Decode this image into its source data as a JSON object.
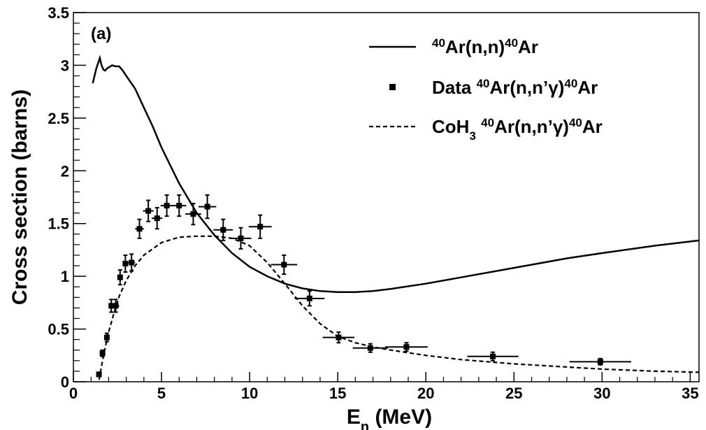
{
  "chart_data": {
    "type": "scatter",
    "panel_label": "(a)",
    "xlabel": {
      "main": "E",
      "sub": "n",
      "tail": " (MeV)"
    },
    "ylabel": "Cross section (barns)",
    "xlim": [
      0,
      35.5
    ],
    "ylim": [
      0,
      3.5
    ],
    "x_ticks": [
      0,
      5,
      10,
      15,
      20,
      25,
      30,
      35
    ],
    "y_ticks": [
      0,
      0.5,
      1,
      1.5,
      2,
      2.5,
      3,
      3.5
    ],
    "x_tick_labels": [
      "0",
      "5",
      "10",
      "15",
      "20",
      "25",
      "30",
      "35"
    ],
    "y_tick_labels": [
      "0",
      "0.5",
      "1",
      "1.5",
      "2",
      "2.5",
      "3",
      "3.5"
    ],
    "legend": {
      "position": "top-right",
      "entries": [
        {
          "key": "elastic",
          "style": "solid-line",
          "parts": [
            [
              "sup",
              "40"
            ],
            [
              "n",
              "Ar(n,n)"
            ],
            [
              "sup",
              "40"
            ],
            [
              "n",
              "Ar"
            ]
          ]
        },
        {
          "key": "data",
          "style": "marker",
          "parts": [
            [
              "n",
              "Data "
            ],
            [
              "sup",
              "40"
            ],
            [
              "n",
              "Ar(n,n’γ)"
            ],
            [
              "sup",
              "40"
            ],
            [
              "n",
              "Ar"
            ]
          ]
        },
        {
          "key": "coh3",
          "style": "dashed-line",
          "parts": [
            [
              "n",
              "CoH"
            ],
            [
              "sub",
              "3"
            ],
            [
              "n",
              " "
            ],
            [
              "sup",
              "40"
            ],
            [
              "n",
              "Ar(n,n’γ)"
            ],
            [
              "sup",
              "40"
            ],
            [
              "n",
              "Ar"
            ]
          ]
        }
      ]
    },
    "series": [
      {
        "name": "40Ar(n,n)40Ar",
        "style": "solid",
        "x": [
          1.1,
          1.3,
          1.5,
          1.6,
          1.7,
          1.8,
          1.9,
          2.0,
          2.2,
          2.4,
          2.6,
          2.8,
          3.0,
          3.5,
          4.0,
          4.5,
          5.0,
          6.0,
          7.0,
          8.0,
          9.0,
          10.0,
          11.0,
          12.0,
          13.0,
          14.0,
          15.0,
          16.0,
          17.0,
          18.0,
          20.0,
          22.0,
          25.0,
          28.0,
          30.0,
          33.0,
          35.5
        ],
        "y": [
          2.83,
          2.97,
          3.07,
          3.0,
          2.96,
          2.95,
          2.97,
          2.98,
          3.0,
          2.99,
          2.99,
          2.95,
          2.9,
          2.78,
          2.6,
          2.42,
          2.22,
          1.88,
          1.6,
          1.39,
          1.22,
          1.09,
          1.0,
          0.93,
          0.885,
          0.86,
          0.85,
          0.85,
          0.86,
          0.88,
          0.93,
          0.99,
          1.08,
          1.17,
          1.22,
          1.29,
          1.34
        ]
      },
      {
        "name": "CoH3 40Ar(n,n'γ)40Ar",
        "style": "dashed",
        "x": [
          1.46,
          1.6,
          1.8,
          2.0,
          2.3,
          2.6,
          3.0,
          3.5,
          4.0,
          5.0,
          6.0,
          7.0,
          8.0,
          9.0,
          10.0,
          11.0,
          12.0,
          13.0,
          14.0,
          15.0,
          16.0,
          17.0,
          18.0,
          20.0,
          22.0,
          25.0,
          28.0,
          30.0,
          33.0,
          35.5
        ],
        "y": [
          0.02,
          0.15,
          0.32,
          0.47,
          0.65,
          0.81,
          0.96,
          1.1,
          1.2,
          1.32,
          1.37,
          1.38,
          1.38,
          1.36,
          1.29,
          1.13,
          0.93,
          0.72,
          0.55,
          0.43,
          0.37,
          0.33,
          0.3,
          0.25,
          0.21,
          0.17,
          0.14,
          0.12,
          0.1,
          0.09
        ]
      },
      {
        "name": "Data 40Ar(n,n'γ)40Ar",
        "style": "marker",
        "points": [
          {
            "x": 1.45,
            "y": 0.07,
            "xerr": 0.05,
            "yerr": 0.02
          },
          {
            "x": 1.65,
            "y": 0.27,
            "xerr": 0.05,
            "yerr": 0.03
          },
          {
            "x": 1.9,
            "y": 0.42,
            "xerr": 0.08,
            "yerr": 0.04
          },
          {
            "x": 2.15,
            "y": 0.72,
            "xerr": 0.1,
            "yerr": 0.06
          },
          {
            "x": 2.4,
            "y": 0.72,
            "xerr": 0.2,
            "yerr": 0.06
          },
          {
            "x": 2.65,
            "y": 0.99,
            "xerr": 0.12,
            "yerr": 0.07
          },
          {
            "x": 2.95,
            "y": 1.12,
            "xerr": 0.15,
            "yerr": 0.08
          },
          {
            "x": 3.3,
            "y": 1.13,
            "xerr": 0.2,
            "yerr": 0.08
          },
          {
            "x": 3.75,
            "y": 1.45,
            "xerr": 0.25,
            "yerr": 0.09
          },
          {
            "x": 4.25,
            "y": 1.62,
            "xerr": 0.3,
            "yerr": 0.1
          },
          {
            "x": 4.75,
            "y": 1.55,
            "xerr": 0.3,
            "yerr": 0.1
          },
          {
            "x": 5.3,
            "y": 1.67,
            "xerr": 0.35,
            "yerr": 0.1
          },
          {
            "x": 6.0,
            "y": 1.67,
            "xerr": 0.4,
            "yerr": 0.1
          },
          {
            "x": 6.8,
            "y": 1.59,
            "xerr": 0.45,
            "yerr": 0.1
          },
          {
            "x": 7.6,
            "y": 1.66,
            "xerr": 0.5,
            "yerr": 0.11
          },
          {
            "x": 8.5,
            "y": 1.44,
            "xerr": 0.55,
            "yerr": 0.1
          },
          {
            "x": 9.5,
            "y": 1.36,
            "xerr": 0.6,
            "yerr": 0.1
          },
          {
            "x": 10.6,
            "y": 1.47,
            "xerr": 0.65,
            "yerr": 0.11
          },
          {
            "x": 11.95,
            "y": 1.11,
            "xerr": 0.75,
            "yerr": 0.09
          },
          {
            "x": 13.4,
            "y": 0.79,
            "xerr": 0.85,
            "yerr": 0.07
          },
          {
            "x": 15.05,
            "y": 0.42,
            "xerr": 0.9,
            "yerr": 0.05
          },
          {
            "x": 16.85,
            "y": 0.32,
            "xerr": 1.0,
            "yerr": 0.04
          },
          {
            "x": 18.9,
            "y": 0.33,
            "xerr": 1.2,
            "yerr": 0.04
          },
          {
            "x": 23.8,
            "y": 0.24,
            "xerr": 1.45,
            "yerr": 0.04
          },
          {
            "x": 29.9,
            "y": 0.19,
            "xerr": 1.75,
            "yerr": 0.03
          }
        ]
      }
    ]
  }
}
